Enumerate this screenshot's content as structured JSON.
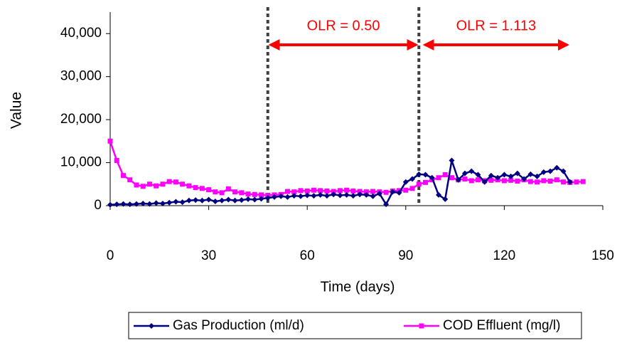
{
  "chart_data": {
    "type": "line",
    "xlabel": "Time (days)",
    "ylabel": "Value",
    "xlim": [
      0,
      150
    ],
    "xticks": [
      0,
      30,
      60,
      90,
      120,
      150
    ],
    "ylim": [
      0,
      45000
    ],
    "yticks": [
      0,
      {
        "value": 10000,
        "label": "10,000"
      },
      {
        "value": 20000,
        "label": "20,000"
      },
      {
        "value": 30000,
        "label": "30,000"
      },
      {
        "value": 40000,
        "label": "40,000"
      }
    ],
    "dividers": [
      48,
      94
    ],
    "annotations": [
      {
        "text": "OLR = 0.50",
        "x": [
          48,
          94
        ]
      },
      {
        "text": "OLR = 1.113",
        "x": [
          95,
          140
        ]
      }
    ],
    "series": [
      {
        "name": "Gas Production (ml/d)",
        "color": "#000080",
        "marker": "diamond",
        "x": [
          0,
          2,
          4,
          6,
          8,
          10,
          12,
          14,
          16,
          18,
          20,
          22,
          24,
          26,
          28,
          30,
          32,
          34,
          36,
          38,
          40,
          42,
          44,
          46,
          48,
          50,
          52,
          54,
          56,
          58,
          60,
          62,
          64,
          66,
          68,
          70,
          72,
          74,
          76,
          78,
          80,
          82,
          84,
          86,
          88,
          90,
          92,
          94,
          96,
          98,
          100,
          102,
          104,
          106,
          108,
          110,
          112,
          114,
          116,
          118,
          120,
          122,
          124,
          126,
          128,
          130,
          132,
          134,
          136,
          138,
          140
        ],
        "values": [
          200,
          300,
          400,
          300,
          400,
          500,
          400,
          600,
          500,
          700,
          900,
          800,
          1200,
          1300,
          1200,
          1400,
          1000,
          1200,
          1400,
          1200,
          1300,
          1500,
          1400,
          1600,
          1800,
          2000,
          2200,
          2000,
          2300,
          2200,
          2400,
          2300,
          2500,
          2300,
          2600,
          2400,
          2500,
          2300,
          2600,
          2500,
          2200,
          2800,
          300,
          3200,
          3000,
          5500,
          6200,
          7300,
          7200,
          6500,
          2500,
          1500,
          10500,
          6000,
          7500,
          8000,
          7200,
          5500,
          7000,
          6500,
          7200,
          6800,
          7500,
          6200,
          7300,
          6800,
          7800,
          8000,
          8800,
          8000,
          5500
        ]
      },
      {
        "name": "COD Effluent (mg/l)",
        "color": "#ff00ff",
        "marker": "square",
        "x": [
          0,
          2,
          4,
          6,
          8,
          10,
          12,
          14,
          16,
          18,
          20,
          22,
          24,
          26,
          28,
          30,
          32,
          34,
          36,
          38,
          40,
          42,
          44,
          46,
          48,
          50,
          52,
          54,
          56,
          58,
          60,
          62,
          64,
          66,
          68,
          70,
          72,
          74,
          76,
          78,
          80,
          82,
          84,
          86,
          88,
          90,
          92,
          94,
          96,
          98,
          100,
          102,
          104,
          106,
          108,
          110,
          112,
          114,
          116,
          118,
          120,
          122,
          124,
          126,
          128,
          130,
          132,
          134,
          136,
          138,
          140,
          142,
          144
        ],
        "values": [
          15000,
          10500,
          7000,
          6000,
          4800,
          4500,
          5000,
          4600,
          5000,
          5600,
          5500,
          5000,
          4600,
          4200,
          4000,
          3700,
          3200,
          3000,
          3900,
          3200,
          3000,
          2700,
          2600,
          2500,
          2400,
          2500,
          2600,
          3300,
          3200,
          3500,
          3400,
          3600,
          3500,
          3400,
          3300,
          3500,
          3600,
          3400,
          3300,
          3200,
          3300,
          3200,
          3100,
          3400,
          3500,
          3600,
          4000,
          5000,
          5400,
          6000,
          6500,
          7200,
          6500,
          6000,
          6200,
          5800,
          6000,
          5800,
          5900,
          6000,
          5800,
          5900,
          5700,
          6000,
          5600,
          5500,
          5800,
          5700,
          6000,
          5500,
          5400,
          5500,
          5600
        ]
      }
    ]
  }
}
